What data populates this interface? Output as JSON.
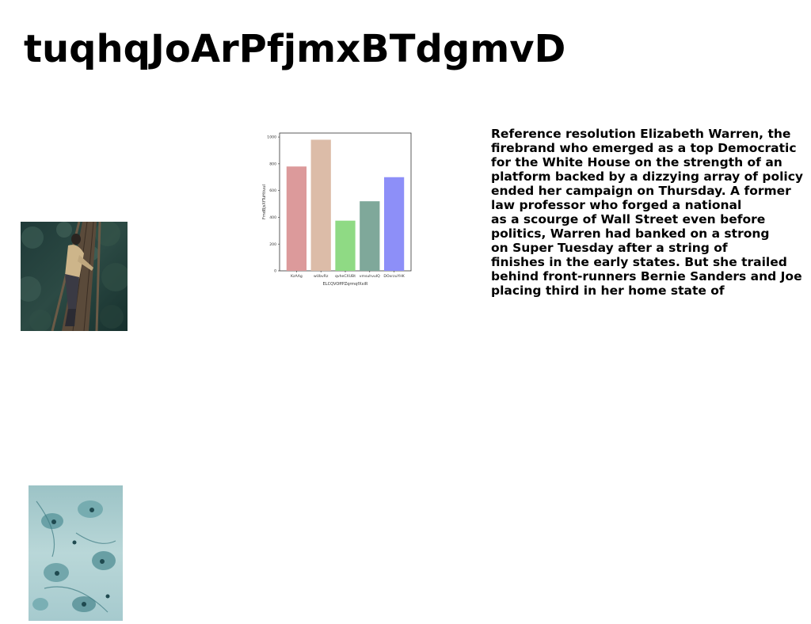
{
  "title": "tuqhqJoArPfjmxBTdgmvD",
  "article": {
    "lines": [
      "Reference resolution Elizabeth Warren, the",
      "firebrand who emerged as a top Democratic",
      "for the White House on the strength of an",
      "platform backed by a dizzying array of policy",
      "ended her campaign on Thursday. A former",
      "law professor who forged a national",
      "as a scourge of Wall Street even before",
      "politics, Warren had banked on a strong",
      "on Super Tuesday after a string of",
      "finishes in the early states. But she trailed",
      "behind front-runners Bernie Sanders and Joe",
      "placing third in her home state of"
    ]
  },
  "chart_data": {
    "type": "bar",
    "title": "",
    "xlabel": "ELCQVOffPZqrmqfXxiR",
    "ylabel": "FmdBjsXfTuHtiuuI",
    "categories": [
      "KzAAg",
      "wUbvRz",
      "qvheCXUBt",
      "vmsuhvuIQ",
      "DOxrzuYHK"
    ],
    "values": [
      780,
      980,
      375,
      520,
      700
    ],
    "ylim": [
      0,
      1030
    ],
    "yticks": [
      0,
      200,
      400,
      600,
      800,
      1000
    ],
    "colors": [
      "#dc9a9b",
      "#dcbca8",
      "#8fda84",
      "#7fa89a",
      "#8d8ff8"
    ],
    "grid": false,
    "legend": "none"
  },
  "images": [
    {
      "name": "photo-person-on-bridge",
      "subject": "person-on-wooden-footbridge"
    },
    {
      "name": "photo-teal-flowers",
      "subject": "teal-floral-texture"
    }
  ]
}
